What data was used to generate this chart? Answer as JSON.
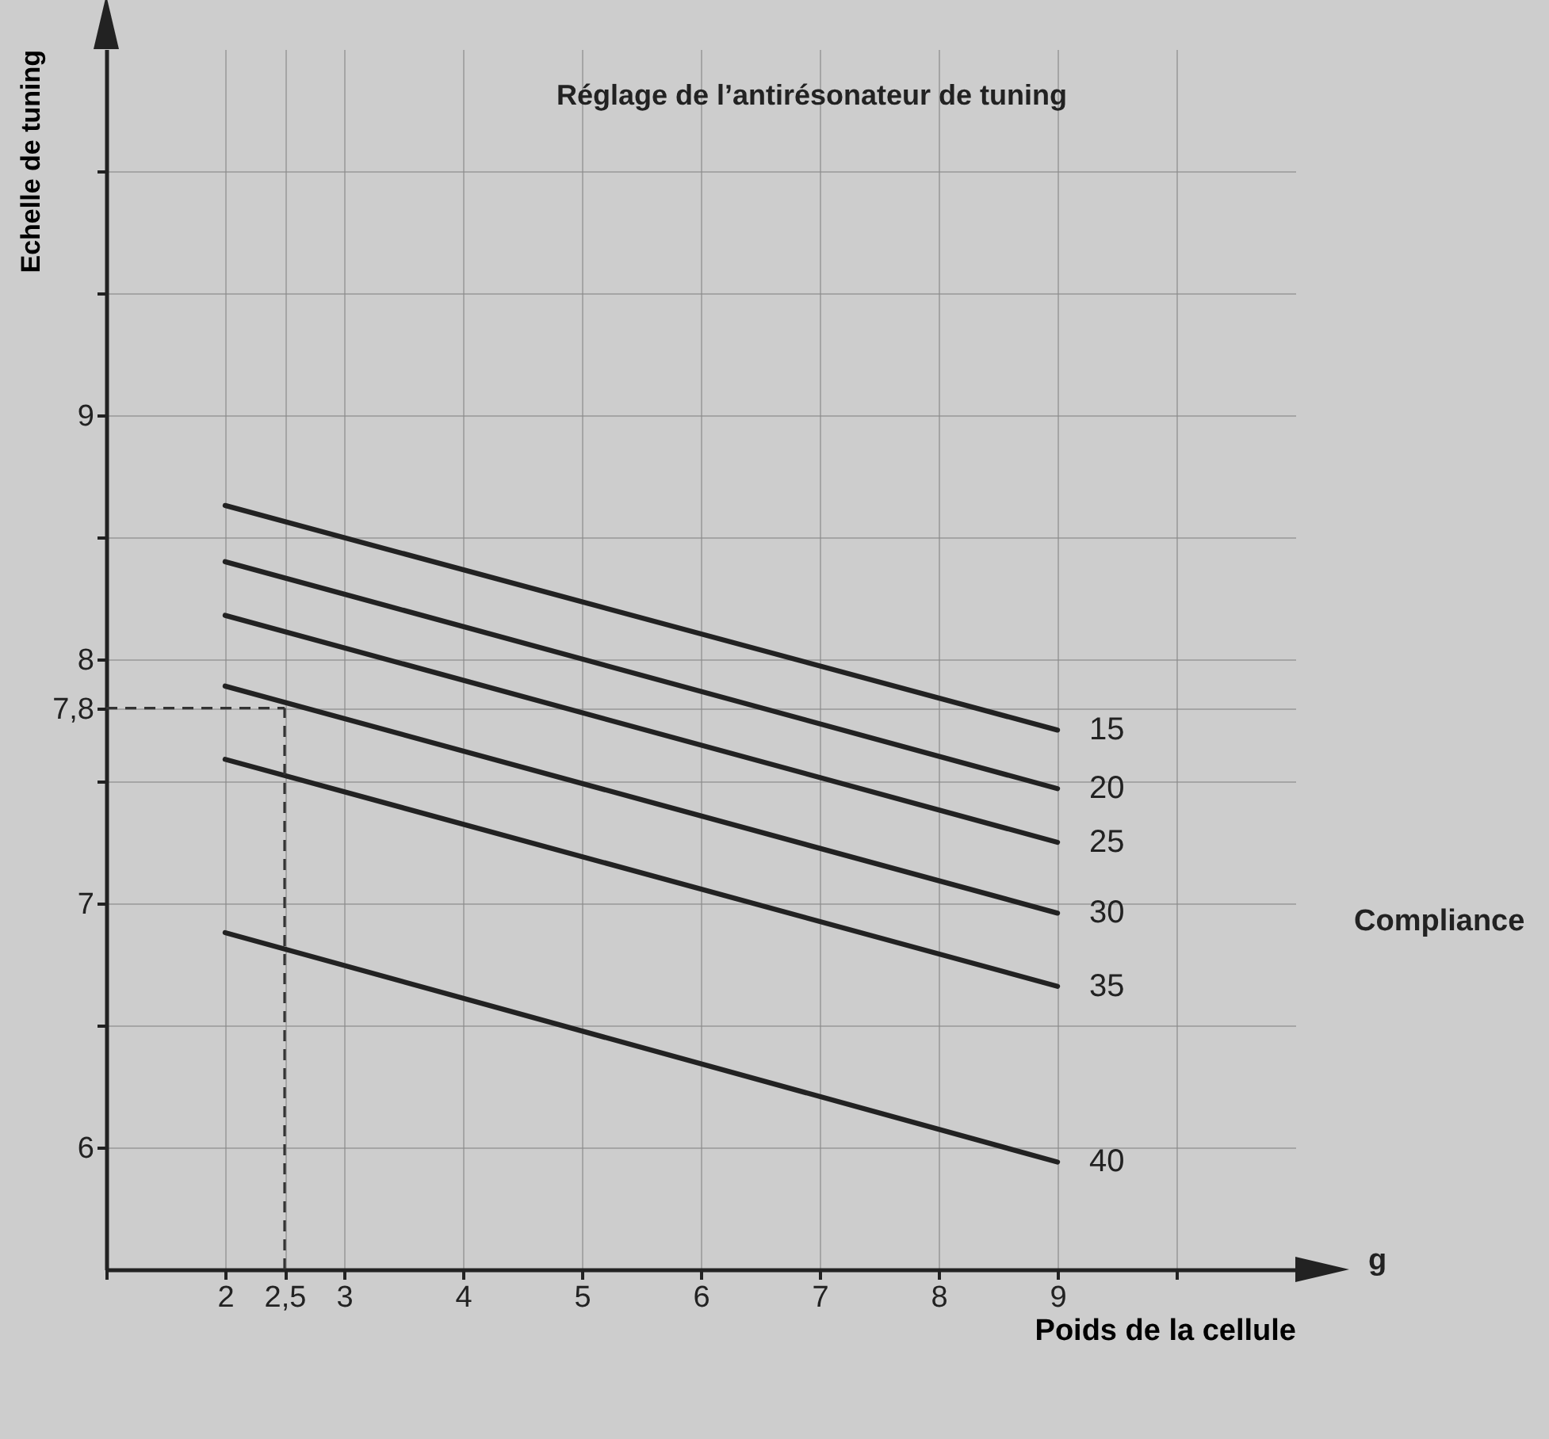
{
  "chart_data": {
    "type": "line",
    "title": "Réglage de l’antirésonateur de tuning",
    "xlabel": "Poids de la cellule",
    "ylabel": "Echelle de tuning",
    "annotations": [
      "Compliance",
      "g"
    ],
    "x": [
      2,
      9
    ],
    "series": [
      {
        "name": "15",
        "color": "#222222",
        "values": [
          8.63,
          7.71
        ]
      },
      {
        "name": "20",
        "color": "#222222",
        "values": [
          8.4,
          7.47
        ]
      },
      {
        "name": "25",
        "color": "#222222",
        "values": [
          8.18,
          7.25
        ]
      },
      {
        "name": "30",
        "color": "#222222",
        "values": [
          7.89,
          6.96
        ]
      },
      {
        "name": "35",
        "color": "#222222",
        "values": [
          7.59,
          6.66
        ]
      },
      {
        "name": "40",
        "color": "#222222",
        "values": [
          6.88,
          5.94
        ]
      }
    ],
    "ref_lines": [
      {
        "axis": "y",
        "value": 7.8,
        "color": "#333333",
        "line_style": "dashed"
      },
      {
        "axis": "x",
        "value": 2.5,
        "color": "#333333",
        "line_style": "dashed"
      }
    ],
    "xlim": [
      1,
      11
    ],
    "ylim": [
      5.5,
      10.5
    ],
    "xticks": [
      {
        "value": 1,
        "label": null
      },
      2,
      {
        "value": 2.5,
        "label": "2,5"
      },
      3,
      4,
      5,
      6,
      7,
      8,
      9,
      {
        "value": 10,
        "label": null
      }
    ],
    "yticks": [
      6,
      {
        "value": 6.5,
        "label": null
      },
      7,
      {
        "value": 7.5,
        "label": null
      },
      {
        "value": 7.8,
        "label": "7,8"
      },
      8,
      {
        "value": 8.5,
        "label": null
      },
      9,
      {
        "value": 9.5,
        "label": null
      },
      {
        "value": 10,
        "label": null
      }
    ],
    "grid": true,
    "legend": false,
    "line_style": "solid",
    "marker": "none"
  }
}
